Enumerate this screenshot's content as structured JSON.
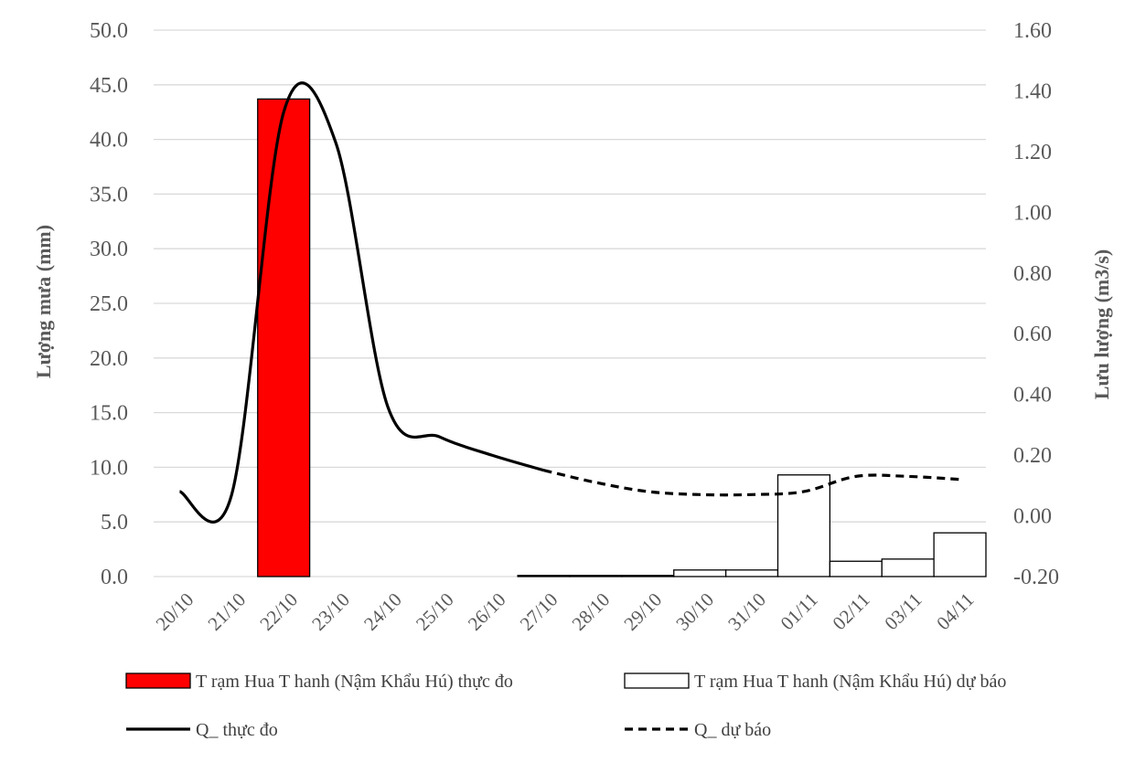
{
  "chart_data": {
    "type": "bar",
    "categories": [
      "20/10",
      "21/10",
      "22/10",
      "23/10",
      "24/10",
      "25/10",
      "26/10",
      "27/10",
      "28/10",
      "29/10",
      "30/10",
      "31/10",
      "01/11",
      "02/11",
      "03/11",
      "04/11"
    ],
    "ylabel": "Lượng mưa (mm)",
    "y2label": "Lưu lượng (m3/s)",
    "ylim": [
      0,
      50
    ],
    "y2lim": [
      -0.2,
      1.6
    ],
    "yticks": [
      "0.0",
      "5.0",
      "10.0",
      "15.0",
      "20.0",
      "25.0",
      "30.0",
      "35.0",
      "40.0",
      "45.0",
      "50.0"
    ],
    "y2ticks": [
      "-0.20",
      "0.00",
      "0.20",
      "0.40",
      "0.60",
      "0.80",
      "1.00",
      "1.20",
      "1.40",
      "1.60"
    ],
    "grid": true,
    "legend_position": "bottom",
    "series": [
      {
        "name": "T rạm Hua T hanh (Nậm Khẩu Hú) thực đo",
        "kind": "bar",
        "axis": "left",
        "color": "#ff0000",
        "values": [
          0,
          0,
          43.7,
          0,
          0,
          0,
          0,
          0,
          0,
          0,
          0,
          0,
          0,
          0,
          0,
          0
        ]
      },
      {
        "name": "T rạm Hua T hanh (Nậm Khẩu Hú) dự báo",
        "kind": "bar",
        "axis": "left",
        "color": "#ffffff",
        "values": [
          0,
          0,
          0,
          0,
          0,
          0,
          0,
          0.1,
          0.1,
          0.1,
          0.6,
          0.6,
          9.3,
          1.4,
          1.6,
          4.0
        ]
      },
      {
        "name": "Q_ thực đo",
        "kind": "line",
        "axis": "right",
        "color": "#000000",
        "values": [
          0.08,
          0.07,
          1.33,
          1.23,
          0.36,
          0.26,
          0.2,
          0.15,
          null,
          null,
          null,
          null,
          null,
          null,
          null,
          null
        ]
      },
      {
        "name": "Q_ dự báo",
        "kind": "line-dashed",
        "axis": "right",
        "color": "#000000",
        "values": [
          null,
          null,
          null,
          null,
          null,
          null,
          null,
          0.15,
          0.11,
          0.08,
          0.07,
          0.07,
          0.08,
          0.13,
          0.13,
          0.12
        ]
      }
    ]
  }
}
